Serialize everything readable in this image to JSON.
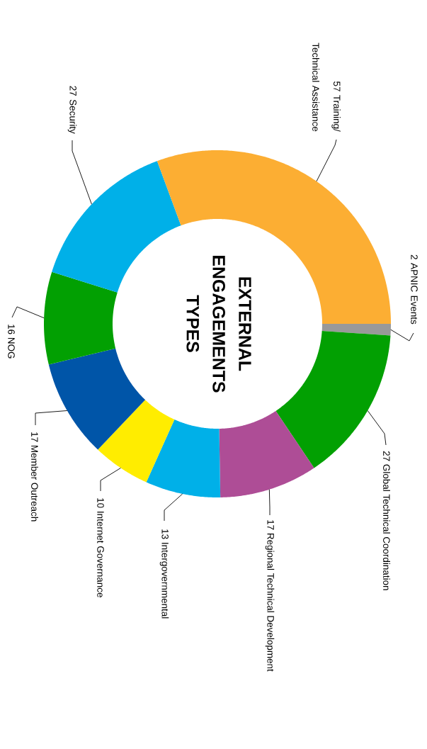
{
  "chart_data": {
    "type": "donut",
    "title": "EXTERNAL ENGAGEMENTS TYPES",
    "categories": [
      "APNIC Events",
      "Global Technical Coordination",
      "Regional Technical Development",
      "Intergovernmental",
      "Internet Governance",
      "Member Outreach",
      "NOG",
      "Security",
      "Training/ Technical Assistance"
    ],
    "values": [
      2,
      27,
      17,
      13,
      10,
      17,
      16,
      27,
      57
    ],
    "colors": [
      "#999999",
      "#02a002",
      "#ae4d96",
      "#00b0e8",
      "#ffed00",
      "#0055a8",
      "#02a002",
      "#00b0e8",
      "#fcae33"
    ],
    "data_labels": true
  }
}
